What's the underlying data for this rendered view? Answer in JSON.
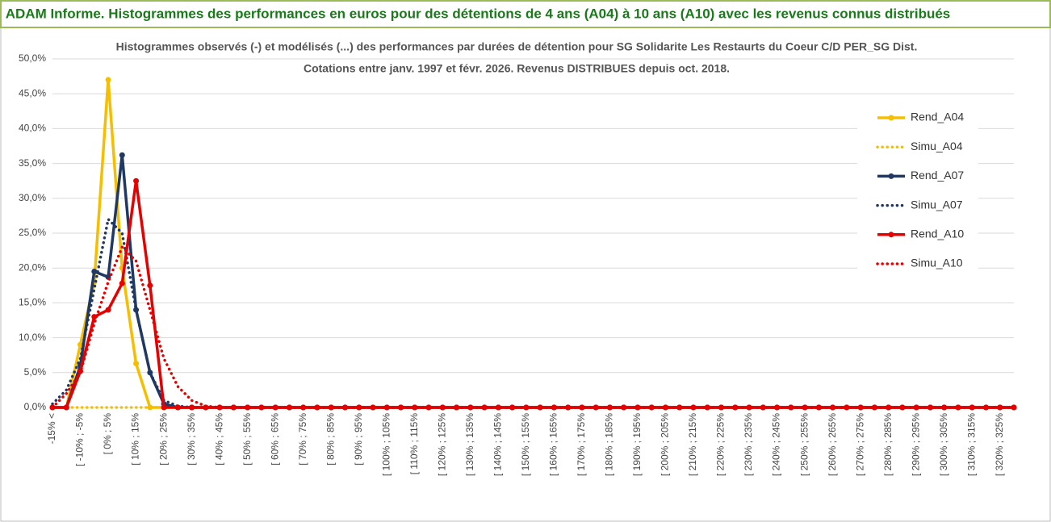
{
  "chart_data": {
    "type": "line",
    "header": "ADAM Informe. Histogrammes des performances en euros pour des détentions de 4 ans (A04) à 10 ans (A10) avec les revenus connus distribués",
    "title": "Histogrammes observés (-) et modélisés (...) des performances par durées de détention pour SG Solidarite Les Restaurts du Coeur C/D PER_SG Dist.",
    "subtitle": "Cotations entre janv. 1997 et févr. 2026. Revenus DISTRIBUES depuis oct. 2018.",
    "categories": [
      "-15% <",
      null,
      "[ -10% ; -5%",
      null,
      "[ 0% ; 5%",
      null,
      "[ 10% ; 15%",
      null,
      "[ 20% ; 25%",
      null,
      "[ 30% ; 35%",
      null,
      "[ 40% ; 45%",
      null,
      "[ 50% ; 55%",
      null,
      "[ 60% ; 65%",
      null,
      "[ 70% ; 75%",
      null,
      "[ 80% ; 85%",
      null,
      "[ 90% ; 95%",
      null,
      "[ 100% ; 105%",
      null,
      "[ 110% ; 115%",
      null,
      "[ 120% ; 125%",
      null,
      "[ 130% ; 135%",
      null,
      "[ 140% ; 145%",
      null,
      "[ 150% ; 155%",
      null,
      "[ 160% ; 165%",
      null,
      "[ 170% ; 175%",
      null,
      "[ 180% ; 185%",
      null,
      "[ 190% ; 195%",
      null,
      "[ 200% ; 205%",
      null,
      "[ 210% ; 215%",
      null,
      "[ 220% ; 225%",
      null,
      "[ 230% ; 235%",
      null,
      "[ 240% ; 245%",
      null,
      "[ 250% ; 255%",
      null,
      "[ 260% ; 265%",
      null,
      "[ 270% ; 275%",
      null,
      "[ 280% ; 285%",
      null,
      "[ 290% ; 295%",
      null,
      "[ 300% ; 305%",
      null,
      "[ 310% ; 315%",
      null,
      "[ 320% ; 325%",
      null
    ],
    "series": [
      {
        "name": "Rend_A04",
        "color": "#f5bf00",
        "style": "solid",
        "values": [
          0,
          0,
          9,
          18,
          47,
          20,
          6.3,
          0,
          0,
          0,
          0,
          0,
          0,
          0,
          0,
          0,
          0,
          0,
          0,
          0,
          0,
          0,
          0,
          0,
          0,
          0,
          0,
          0,
          0,
          0,
          0,
          0,
          0,
          0,
          0,
          0,
          0,
          0,
          0,
          0,
          0,
          0,
          0,
          0,
          0,
          0,
          0,
          0,
          0,
          0,
          0,
          0,
          0,
          0,
          0,
          0,
          0,
          0,
          0,
          0,
          0,
          0,
          0,
          0,
          0,
          0,
          0,
          0,
          0,
          0
        ]
      },
      {
        "name": "Simu_A04",
        "color": "#f5bf00",
        "style": "dotted",
        "values": [
          0,
          0,
          0,
          0,
          0,
          0,
          0,
          0,
          0,
          0,
          0,
          0,
          0,
          0,
          0,
          0,
          0,
          0,
          0,
          0,
          0,
          0,
          0,
          0,
          0,
          0,
          0,
          0,
          0,
          0,
          0,
          0,
          0,
          0,
          0,
          0,
          0,
          0,
          0,
          0,
          0,
          0,
          0,
          0,
          0,
          0,
          0,
          0,
          0,
          0,
          0,
          0,
          0,
          0,
          0,
          0,
          0,
          0,
          0,
          0,
          0,
          0,
          0,
          0,
          0,
          0,
          0,
          0,
          0,
          0
        ]
      },
      {
        "name": "Rend_A07",
        "color": "#1f3864",
        "style": "solid",
        "values": [
          0,
          0,
          6,
          19.5,
          18.7,
          36.2,
          14,
          5,
          0.5,
          0,
          0,
          0,
          0,
          0,
          0,
          0,
          0,
          0,
          0,
          0,
          0,
          0,
          0,
          0,
          0,
          0,
          0,
          0,
          0,
          0,
          0,
          0,
          0,
          0,
          0,
          0,
          0,
          0,
          0,
          0,
          0,
          0,
          0,
          0,
          0,
          0,
          0,
          0,
          0,
          0,
          0,
          0,
          0,
          0,
          0,
          0,
          0,
          0,
          0,
          0,
          0,
          0,
          0,
          0,
          0,
          0,
          0,
          0,
          0,
          0
        ]
      },
      {
        "name": "Simu_A07",
        "color": "#1f3864",
        "style": "dotted",
        "values": [
          0.5,
          2.5,
          7,
          17,
          27,
          25,
          14,
          5,
          1,
          0.2,
          0,
          0,
          0,
          0,
          0,
          0,
          0,
          0,
          0,
          0,
          0,
          0,
          0,
          0,
          0,
          0,
          0,
          0,
          0,
          0,
          0,
          0,
          0,
          0,
          0,
          0,
          0,
          0,
          0,
          0,
          0,
          0,
          0,
          0,
          0,
          0,
          0,
          0,
          0,
          0,
          0,
          0,
          0,
          0,
          0,
          0,
          0,
          0,
          0,
          0,
          0,
          0,
          0,
          0,
          0,
          0,
          0,
          0,
          0,
          0
        ]
      },
      {
        "name": "Rend_A10",
        "color": "#e60000",
        "style": "solid",
        "values": [
          0,
          0,
          5.2,
          13,
          14,
          17.8,
          32.5,
          17.5,
          0,
          0,
          0,
          0,
          0,
          0,
          0,
          0,
          0,
          0,
          0,
          0,
          0,
          0,
          0,
          0,
          0,
          0,
          0,
          0,
          0,
          0,
          0,
          0,
          0,
          0,
          0,
          0,
          0,
          0,
          0,
          0,
          0,
          0,
          0,
          0,
          0,
          0,
          0,
          0,
          0,
          0,
          0,
          0,
          0,
          0,
          0,
          0,
          0,
          0,
          0,
          0,
          0,
          0,
          0,
          0,
          0,
          0,
          0,
          0,
          0,
          0
        ]
      },
      {
        "name": "Simu_A10",
        "color": "#e60000",
        "style": "dotted",
        "values": [
          0,
          2,
          5,
          12,
          18,
          23,
          21,
          14,
          7,
          3,
          1,
          0.2,
          0,
          0,
          0,
          0,
          0,
          0,
          0,
          0,
          0,
          0,
          0,
          0,
          0,
          0,
          0,
          0,
          0,
          0,
          0,
          0,
          0,
          0,
          0,
          0,
          0,
          0,
          0,
          0,
          0,
          0,
          0,
          0,
          0,
          0,
          0,
          0,
          0,
          0,
          0,
          0,
          0,
          0,
          0,
          0,
          0,
          0,
          0,
          0,
          0,
          0,
          0,
          0,
          0,
          0,
          0,
          0,
          0,
          0
        ]
      }
    ],
    "ylim": [
      0,
      50
    ],
    "yticks": [
      {
        "value": 0,
        "label": "0,0%"
      },
      {
        "value": 5,
        "label": "5,0%"
      },
      {
        "value": 10,
        "label": "10,0%"
      },
      {
        "value": 15,
        "label": "15,0%"
      },
      {
        "value": 20,
        "label": "20,0%"
      },
      {
        "value": 25,
        "label": "25,0%"
      },
      {
        "value": 30,
        "label": "30,0%"
      },
      {
        "value": 35,
        "label": "35,0%"
      },
      {
        "value": 40,
        "label": "40,0%"
      },
      {
        "value": 45,
        "label": "45,0%"
      },
      {
        "value": 50,
        "label": "50,0%"
      }
    ],
    "grid": true,
    "legend": "right"
  }
}
